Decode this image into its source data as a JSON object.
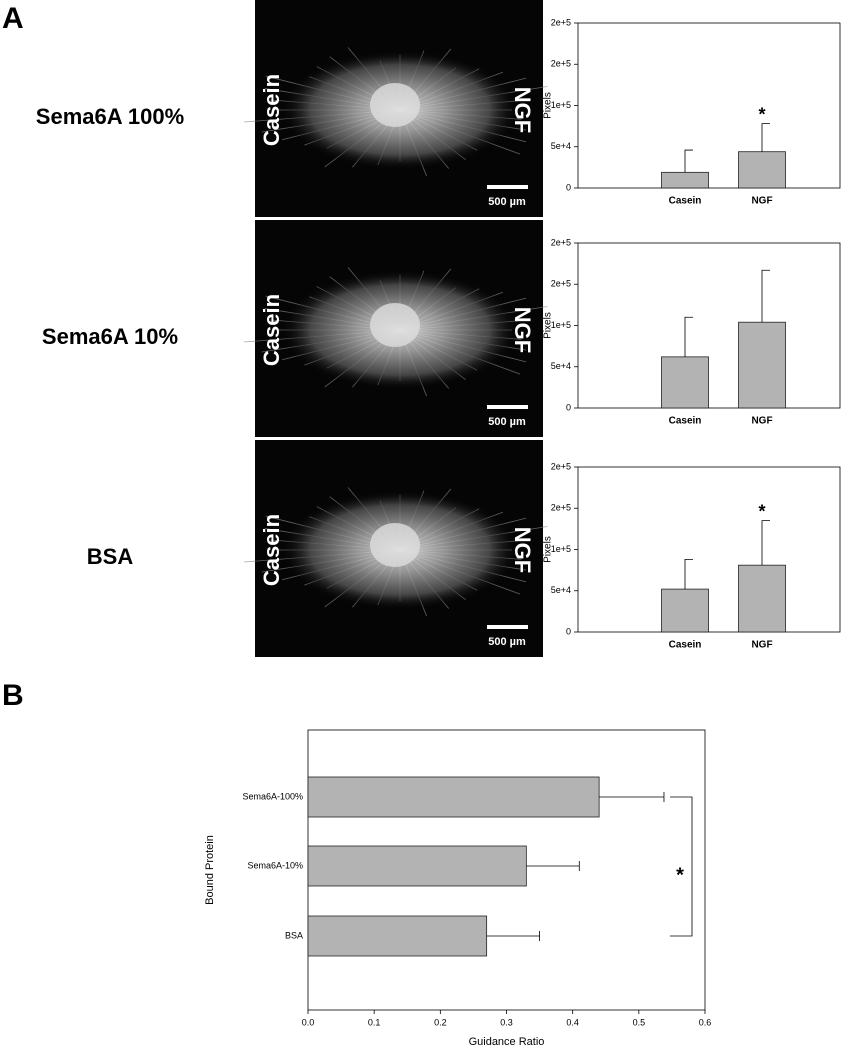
{
  "panels": {
    "a": "A",
    "b": "B"
  },
  "images": [
    {
      "row_label": "Sema6A 100%",
      "left": "Casein",
      "right": "NGF",
      "scale": "500 µm"
    },
    {
      "row_label": "Sema6A 10%",
      "left": "Casein",
      "right": "NGF",
      "scale": "500 µm"
    },
    {
      "row_label": "BSA",
      "left": "Casein",
      "right": "NGF",
      "scale": "500 µm"
    }
  ],
  "chart_data": [
    {
      "type": "bar",
      "categories": [
        "Casein",
        "NGF"
      ],
      "values": [
        19000,
        44000
      ],
      "errors": [
        27000,
        34000
      ],
      "color": "#b3b3b3",
      "ylabel": "Pixels",
      "annotation": "*",
      "ylim": [
        0,
        200000
      ],
      "yticks": [
        0,
        {
          "value": 50000,
          "label": "5e+4"
        },
        {
          "value": 100000,
          "label": "1e+5"
        },
        {
          "value": 150000,
          "label": "2e+5"
        },
        {
          "value": 200000,
          "label": "2e+5"
        }
      ]
    },
    {
      "type": "bar",
      "categories": [
        "Casein",
        "NGF"
      ],
      "values": [
        62000,
        104000
      ],
      "errors": [
        48000,
        63000
      ],
      "color": "#b3b3b3",
      "ylabel": "Pixels",
      "ylim": [
        0,
        200000
      ],
      "yticks": [
        0,
        {
          "value": 50000,
          "label": "5e+4"
        },
        {
          "value": 100000,
          "label": "1e+5"
        },
        {
          "value": 150000,
          "label": "2e+5"
        },
        {
          "value": 200000,
          "label": "2e+5"
        }
      ]
    },
    {
      "type": "bar",
      "categories": [
        "Casein",
        "NGF"
      ],
      "values": [
        52000,
        81000
      ],
      "errors": [
        36000,
        54000
      ],
      "color": "#b3b3b3",
      "ylabel": "Pixels",
      "annotation": "*",
      "ylim": [
        0,
        200000
      ],
      "yticks": [
        0,
        {
          "value": 50000,
          "label": "5e+4"
        },
        {
          "value": 100000,
          "label": "1e+5"
        },
        {
          "value": 150000,
          "label": "2e+5"
        },
        {
          "value": 200000,
          "label": "2e+5"
        }
      ]
    },
    {
      "type": "barh",
      "categories": [
        "Sema6A-100%",
        "Sema6A-10%",
        "BSA"
      ],
      "values": [
        0.44,
        0.33,
        0.27
      ],
      "errors": [
        0.098,
        0.08,
        0.08
      ],
      "color": "#b3b3b3",
      "xlabel": "Guidance Ratio",
      "ylabel": "Bound Protein",
      "annotation": "*",
      "xlim": [
        0,
        0.6
      ],
      "xticks": [
        {
          "value": 0,
          "label": "0.0"
        },
        0.1,
        0.2,
        0.3,
        0.4,
        0.5,
        0.6
      ]
    }
  ]
}
